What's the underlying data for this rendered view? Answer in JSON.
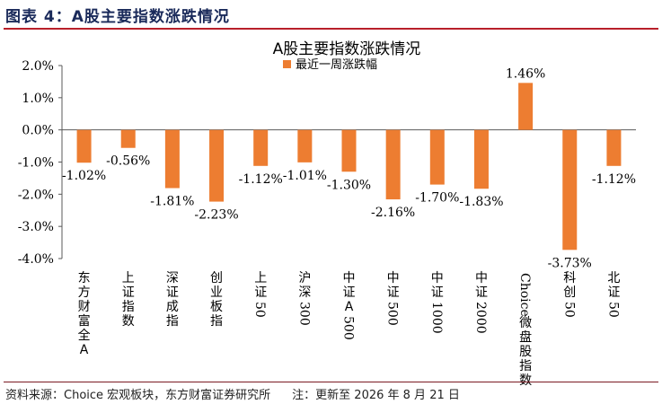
{
  "figure": {
    "title": "图表 4：A股主要指数涨跌情况",
    "source": "资料来源：Choice 宏观板块，东方财富证券研究所",
    "note": "注：更新至 2026 年 8 月 21 日"
  },
  "chart_data": {
    "type": "bar",
    "title": "A股主要指数涨跌情况",
    "categories": [
      "东方财富全A",
      "上证指数",
      "深证成指",
      "创业板指",
      "上证50",
      "沪深300",
      "中证A500",
      "中证500",
      "中证1000",
      "中证2000",
      "Choice微盘股指数",
      "科创50",
      "北证50"
    ],
    "series": [
      {
        "name": "最近一周涨跌幅",
        "values": [
          -1.02,
          -0.56,
          -1.81,
          -2.23,
          -1.12,
          -1.01,
          -1.3,
          -2.16,
          -1.7,
          -1.83,
          1.46,
          -3.73,
          -1.12
        ]
      }
    ],
    "data_labels": [
      "-1.02%",
      "-0.56%",
      "-1.81%",
      "-2.23%",
      "-1.12%",
      "-1.01%",
      "-1.30%",
      "-2.16%",
      "-1.70%",
      "-1.83%",
      "1.46%",
      "-3.73%",
      "-1.12%"
    ],
    "y_ticks": [
      "2.0%",
      "1.0%",
      "0.0%",
      "-1.0%",
      "-2.0%",
      "-3.0%",
      "-4.0%"
    ],
    "ylim": [
      -4.0,
      2.0
    ],
    "legend_position": "top-center",
    "colors": {
      "bar": "#ed7d31",
      "axis": "#595959"
    }
  }
}
